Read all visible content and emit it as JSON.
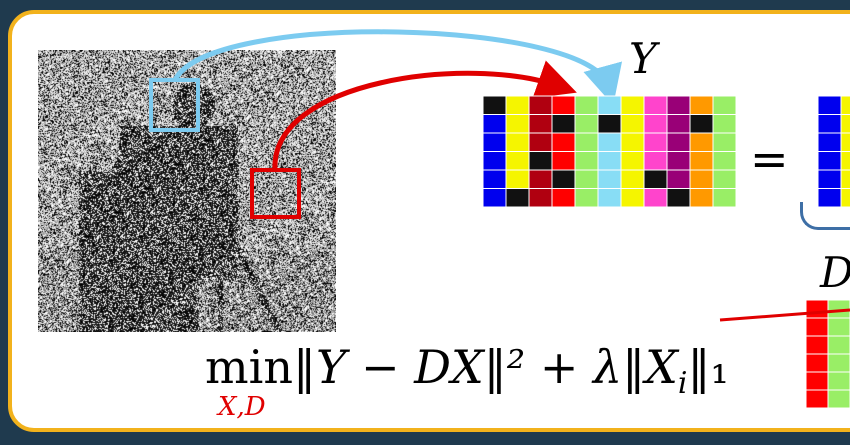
{
  "labels": {
    "y": "Y",
    "d": "D",
    "equals": "=",
    "formula_min": "min",
    "formula_body": "‖Y − DX‖² + λ‖X",
    "formula_sub_i": "i",
    "formula_tail": "‖₁",
    "formula_subscript": "X,D"
  },
  "colors": {
    "frame": "#f2b21c",
    "blue_arrow": "#7ccbf0",
    "red_arrow": "#e00000",
    "background": "#1f3a4e"
  },
  "matrix_y_columns": [
    [
      "#111111",
      "#0000ee",
      "#0000ee",
      "#0000ee",
      "#0000ee",
      "#0000ee"
    ],
    [
      "#f5f500",
      "#f5f500",
      "#f5f500",
      "#f5f500",
      "#f5f500",
      "#111111"
    ],
    [
      "#b00010",
      "#b00010",
      "#b00010",
      "#111111",
      "#b00010",
      "#b00010"
    ],
    [
      "#ff0000",
      "#111111",
      "#ff0000",
      "#ff0000",
      "#111111",
      "#ff0000"
    ],
    [
      "#99ee66",
      "#99ee66",
      "#99ee66",
      "#99ee66",
      "#99ee66",
      "#99ee66"
    ],
    [
      "#88ddf5",
      "#111111",
      "#88ddf5",
      "#88ddf5",
      "#88ddf5",
      "#88ddf5"
    ],
    [
      "#f5f500",
      "#f5f500",
      "#f5f500",
      "#f5f500",
      "#f5f500",
      "#f5f500"
    ],
    [
      "#ff44cc",
      "#ff44cc",
      "#ff44cc",
      "#ff44cc",
      "#111111",
      "#ff44cc"
    ],
    [
      "#990077",
      "#990077",
      "#990077",
      "#990077",
      "#990077",
      "#111111"
    ],
    [
      "#ff9900",
      "#111111",
      "#ff9900",
      "#ff9900",
      "#ff9900",
      "#ff9900"
    ],
    [
      "#99ee66",
      "#99ee66",
      "#99ee66",
      "#99ee66",
      "#99ee66",
      "#99ee66"
    ]
  ],
  "matrix_partial_columns": [
    [
      "#0000ee",
      "#0000ee",
      "#0000ee",
      "#0000ee",
      "#0000ee",
      "#0000ee"
    ],
    [
      "#f5f500",
      "#f5f500",
      "#f5f500",
      "#f5f500",
      "#f5f500",
      "#f5f500"
    ]
  ],
  "matrix_d_columns": [
    [
      "#ff0000",
      "#ff0000",
      "#ff0000",
      "#ff0000",
      "#ff0000",
      "#ff0000"
    ],
    [
      "#99ee66",
      "#99ee66",
      "#99ee66",
      "#99ee66",
      "#99ee66",
      "#99ee66"
    ]
  ]
}
